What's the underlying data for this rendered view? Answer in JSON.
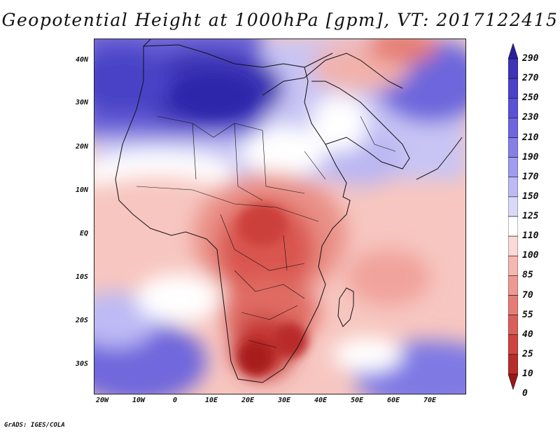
{
  "title": "Geopotential Height at 1000hPa [gpm], VT: 2017122415",
  "footer": "GrADS: IGES/COLA",
  "lat_labels": [
    "40N",
    "30N",
    "20N",
    "10N",
    "EQ",
    "10S",
    "20S",
    "30S"
  ],
  "lon_labels": [
    "20W",
    "10W",
    "0",
    "10E",
    "20E",
    "30E",
    "40E",
    "50E",
    "60E",
    "70E"
  ],
  "colorbar": {
    "levels": [
      "290",
      "270",
      "250",
      "230",
      "210",
      "190",
      "170",
      "150",
      "125",
      "110",
      "100",
      "85",
      "70",
      "55",
      "40",
      "25",
      "10",
      "0"
    ],
    "colors": [
      "#2a1f9e",
      "#3d34b8",
      "#4a42c8",
      "#5a52d6",
      "#6e66e0",
      "#8580e8",
      "#a09cf0",
      "#bdbaf5",
      "#dad9fa",
      "#ffffff",
      "#fbd9d5",
      "#f5b7b1",
      "#ee9a93",
      "#e57d76",
      "#da5f5a",
      "#cd4440",
      "#b82d2b",
      "#9c1717"
    ]
  },
  "palette": {
    "deep_blue": "#3b33b5",
    "mid_blue": "#6f68dc",
    "light_blue": "#c4c1f2",
    "white": "#ffffff",
    "light_red": "#f7c3bd",
    "mid_red": "#e37d74",
    "deep_red": "#b52a28"
  }
}
